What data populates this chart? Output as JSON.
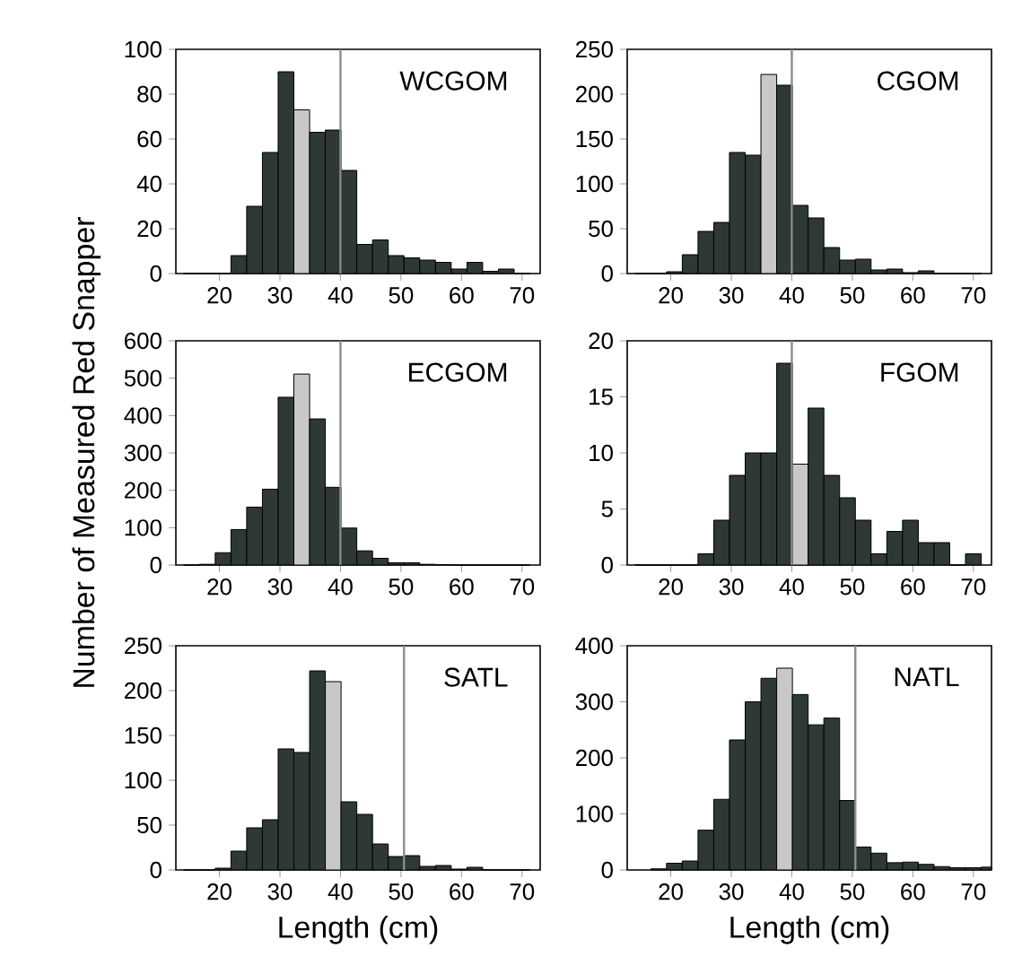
{
  "chart_data": [
    {
      "type": "histogram",
      "title": "WCGOM",
      "bins": [
        14.1,
        16.7,
        19.3,
        21.9,
        24.5,
        27.1,
        29.7,
        32.3,
        34.9,
        37.5,
        40.1,
        42.7,
        45.3,
        47.9,
        50.5,
        53.1,
        55.7,
        58.3,
        60.9,
        63.5,
        66.1,
        68.7,
        71.3
      ],
      "values": [
        0,
        0,
        0,
        8,
        30,
        54,
        90,
        73,
        63,
        64,
        46,
        13,
        15,
        8,
        7,
        6,
        5,
        2,
        5,
        1,
        2,
        0
      ],
      "colors": [
        "#2e3834",
        "#2e3834",
        "#2e3834",
        "#2e3834",
        "#2e3834",
        "#2e3834",
        "#2e3834",
        "#c8c8c8",
        "#2e3834",
        "#2e3834",
        "#2e3834",
        "#2e3834",
        "#2e3834",
        "#2e3834",
        "#2e3834",
        "#2e3834",
        "#2e3834",
        "#2e3834",
        "#2e3834",
        "#2e3834",
        "#2e3834",
        "#2e3834"
      ],
      "xlim": [
        12.8,
        73
      ],
      "xticks": [
        20,
        30,
        40,
        50,
        60,
        70
      ],
      "ylim": [
        0,
        100
      ],
      "yticks": [
        0,
        20,
        40,
        60,
        80,
        100
      ],
      "ref_lines": [
        {
          "axis": "x",
          "value": 40,
          "color": "#8c8c8c"
        }
      ]
    },
    {
      "type": "histogram",
      "title": "CGOM",
      "bins": [
        14.1,
        16.7,
        19.3,
        21.9,
        24.5,
        27.1,
        29.7,
        32.3,
        34.9,
        37.5,
        40.1,
        42.7,
        45.3,
        47.9,
        50.5,
        53.1,
        55.7,
        58.3,
        60.9,
        63.5,
        66.1,
        68.7,
        71.3
      ],
      "values": [
        0,
        0,
        2,
        21,
        47,
        57,
        135,
        132,
        222,
        210,
        76,
        62,
        29,
        15,
        16,
        4,
        5,
        1,
        3,
        0,
        0,
        0
      ],
      "colors": [
        "#2e3834",
        "#2e3834",
        "#2e3834",
        "#2e3834",
        "#2e3834",
        "#2e3834",
        "#2e3834",
        "#2e3834",
        "#c8c8c8",
        "#2e3834",
        "#2e3834",
        "#2e3834",
        "#2e3834",
        "#2e3834",
        "#2e3834",
        "#2e3834",
        "#2e3834",
        "#2e3834",
        "#2e3834",
        "#2e3834",
        "#2e3834",
        "#2e3834"
      ],
      "xlim": [
        12.8,
        73
      ],
      "xticks": [
        20,
        30,
        40,
        50,
        60,
        70
      ],
      "ylim": [
        0,
        250
      ],
      "yticks": [
        0,
        50,
        100,
        150,
        200,
        250
      ],
      "ref_lines": [
        {
          "axis": "x",
          "value": 40,
          "color": "#8c8c8c"
        }
      ]
    },
    {
      "type": "histogram",
      "title": "ECGOM",
      "ylabel": "Number of Measured Red Snapper",
      "bins": [
        14.1,
        16.7,
        19.3,
        21.9,
        24.5,
        27.1,
        29.7,
        32.3,
        34.9,
        37.5,
        40.1,
        42.7,
        45.3,
        47.9,
        50.5,
        53.1,
        55.7,
        58.3,
        60.9,
        63.5,
        66.1,
        68.7,
        71.3
      ],
      "values": [
        0,
        2,
        33,
        95,
        155,
        203,
        449,
        511,
        391,
        208,
        99,
        38,
        18,
        6,
        6,
        2,
        1,
        0,
        0,
        0,
        0,
        0
      ],
      "colors": [
        "#2e3834",
        "#2e3834",
        "#2e3834",
        "#2e3834",
        "#2e3834",
        "#2e3834",
        "#2e3834",
        "#c8c8c8",
        "#2e3834",
        "#2e3834",
        "#2e3834",
        "#2e3834",
        "#2e3834",
        "#2e3834",
        "#2e3834",
        "#2e3834",
        "#2e3834",
        "#2e3834",
        "#2e3834",
        "#2e3834",
        "#2e3834",
        "#2e3834"
      ],
      "xlim": [
        12.8,
        73
      ],
      "xticks": [
        20,
        30,
        40,
        50,
        60,
        70
      ],
      "ylim": [
        0,
        600
      ],
      "yticks": [
        0,
        100,
        200,
        300,
        400,
        500,
        600
      ],
      "ref_lines": [
        {
          "axis": "x",
          "value": 40,
          "color": "#8c8c8c"
        }
      ]
    },
    {
      "type": "histogram",
      "title": "FGOM",
      "bins": [
        14.1,
        16.7,
        19.3,
        21.9,
        24.5,
        27.1,
        29.7,
        32.3,
        34.9,
        37.5,
        40.1,
        42.7,
        45.3,
        47.9,
        50.5,
        53.1,
        55.7,
        58.3,
        60.9,
        63.5,
        66.1,
        68.7,
        71.3
      ],
      "values": [
        0,
        0,
        0,
        0,
        1,
        4,
        8,
        10,
        10,
        18,
        9,
        14,
        8,
        6,
        4,
        1,
        3,
        4,
        2,
        2,
        0,
        1
      ],
      "colors": [
        "#2e3834",
        "#2e3834",
        "#2e3834",
        "#2e3834",
        "#2e3834",
        "#2e3834",
        "#2e3834",
        "#2e3834",
        "#2e3834",
        "#2e3834",
        "#c8c8c8",
        "#2e3834",
        "#2e3834",
        "#2e3834",
        "#2e3834",
        "#2e3834",
        "#2e3834",
        "#2e3834",
        "#2e3834",
        "#2e3834",
        "#2e3834",
        "#2e3834"
      ],
      "xlim": [
        12.8,
        73
      ],
      "xticks": [
        20,
        30,
        40,
        50,
        60,
        70
      ],
      "ylim": [
        0,
        20
      ],
      "yticks": [
        0,
        5,
        10,
        15,
        20
      ],
      "ref_lines": [
        {
          "axis": "x",
          "value": 40,
          "color": "#8c8c8c"
        }
      ]
    },
    {
      "type": "histogram",
      "title": "SATL",
      "xlabel": "Length (cm)",
      "bins": [
        14.1,
        16.7,
        19.3,
        21.9,
        24.5,
        27.1,
        29.7,
        32.3,
        34.9,
        37.5,
        40.1,
        42.7,
        45.3,
        47.9,
        50.5,
        53.1,
        55.7,
        58.3,
        60.9,
        63.5,
        66.1,
        68.7,
        71.3
      ],
      "values": [
        0,
        0,
        2,
        21,
        47,
        56,
        135,
        131,
        222,
        210,
        76,
        62,
        29,
        15,
        16,
        4,
        5,
        1,
        3,
        0,
        0,
        0
      ],
      "colors": [
        "#2e3834",
        "#2e3834",
        "#2e3834",
        "#2e3834",
        "#2e3834",
        "#2e3834",
        "#2e3834",
        "#2e3834",
        "#2e3834",
        "#c8c8c8",
        "#2e3834",
        "#2e3834",
        "#2e3834",
        "#2e3834",
        "#2e3834",
        "#2e3834",
        "#2e3834",
        "#2e3834",
        "#2e3834",
        "#2e3834",
        "#2e3834",
        "#2e3834"
      ],
      "xlim": [
        12.8,
        73
      ],
      "xticks": [
        20,
        30,
        40,
        50,
        60,
        70
      ],
      "ylim": [
        0,
        250
      ],
      "yticks": [
        0,
        50,
        100,
        150,
        200,
        250
      ],
      "ref_lines": [
        {
          "axis": "x",
          "value": 50.5,
          "color": "#8c8c8c"
        }
      ]
    },
    {
      "type": "histogram",
      "title": "NATL",
      "xlabel": "Length (cm)",
      "bins": [
        16.7,
        19.3,
        21.9,
        24.5,
        27.1,
        29.7,
        32.3,
        34.9,
        37.5,
        40.1,
        42.7,
        45.3,
        47.9,
        50.5,
        53.1,
        55.7,
        58.3,
        60.9,
        63.5,
        66.1,
        68.7,
        71.3,
        73
      ],
      "values": [
        2,
        12,
        16,
        71,
        126,
        232,
        300,
        342,
        360,
        313,
        259,
        271,
        124,
        41,
        30,
        13,
        14,
        10,
        6,
        4,
        4,
        5
      ],
      "colors": [
        "#2e3834",
        "#2e3834",
        "#2e3834",
        "#2e3834",
        "#2e3834",
        "#2e3834",
        "#2e3834",
        "#2e3834",
        "#c8c8c8",
        "#2e3834",
        "#2e3834",
        "#2e3834",
        "#2e3834",
        "#2e3834",
        "#2e3834",
        "#2e3834",
        "#2e3834",
        "#2e3834",
        "#2e3834",
        "#2e3834",
        "#2e3834",
        "#2e3834"
      ],
      "xlim": [
        12.8,
        73
      ],
      "xticks": [
        20,
        30,
        40,
        50,
        60,
        70
      ],
      "ylim": [
        0,
        400
      ],
      "yticks": [
        0,
        100,
        200,
        300,
        400
      ],
      "ref_lines": [
        {
          "axis": "x",
          "value": 50.5,
          "color": "#8c8c8c"
        }
      ]
    }
  ]
}
